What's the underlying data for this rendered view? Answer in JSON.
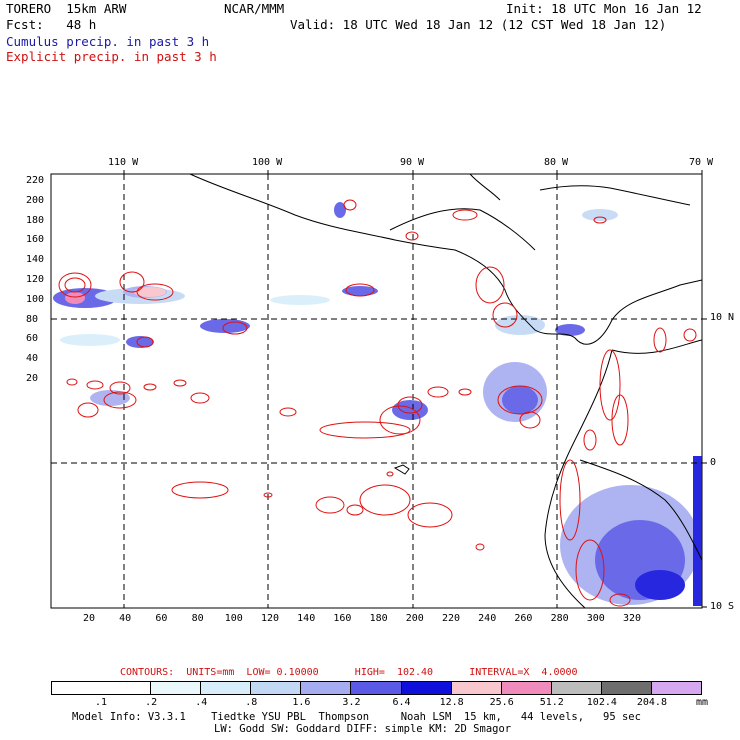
{
  "header": {
    "model": "TORERO  15km ARW",
    "org": "NCAR/MMM",
    "init": "Init: 18 UTC Mon 16 Jan 12",
    "fcst": "Fcst:   48 h",
    "valid": "Valid: 18 UTC Wed 18 Jan 12 (12 CST Wed 18 Jan 12)",
    "line_cumulus": "Cumulus precip. in past 3 h",
    "line_explicit": "Explicit precip. in past 3 h"
  },
  "colors": {
    "cumulus_text": "#1a1aa6",
    "explicit_text": "#d01010",
    "contour": "#e01010",
    "coast": "#000000"
  },
  "axes": {
    "top_lon": [
      "110 W",
      "100 W",
      "90 W",
      "80 W",
      "70 W"
    ],
    "right_lat": [
      "10 N",
      "0",
      "10 S"
    ],
    "left_y": [
      "220",
      "200",
      "180",
      "160",
      "140",
      "120",
      "100",
      "80",
      "60",
      "40",
      "20"
    ],
    "bottom_x": [
      "20",
      "40",
      "60",
      "80",
      "100",
      "120",
      "140",
      "160",
      "180",
      "200",
      "220",
      "240",
      "260",
      "280",
      "300",
      "320"
    ]
  },
  "contour_info": {
    "text": "CONTOURS:  UNITS=mm  LOW= 0.10000      HIGH=  102.40      INTERVAL=X  4.0000"
  },
  "colorbar": {
    "units": "mm",
    "labels": [
      ".1",
      ".2",
      ".4",
      ".8",
      "1.6",
      "3.2",
      "6.4",
      "12.8",
      "25.6",
      "51.2",
      "102.4",
      "204.8"
    ],
    "colors": [
      "#ffffff",
      "#ffffff",
      "#eaf7fb",
      "#d8eefa",
      "#c2d8f4",
      "#a6acf0",
      "#5a5ae6",
      "#1010dc",
      "#f9c8cf",
      "#f08cbc",
      "#bcbcbc",
      "#6e6e6e",
      "#d7a8f2"
    ]
  },
  "footer": {
    "line1": "Model Info: V3.3.1    Tiedtke YSU PBL  Thompson     Noah LSM  15 km,   44 levels,   95 sec",
    "line2": "LW: Godd SW: Goddard DIFF: simple KM: 2D Smagor"
  }
}
